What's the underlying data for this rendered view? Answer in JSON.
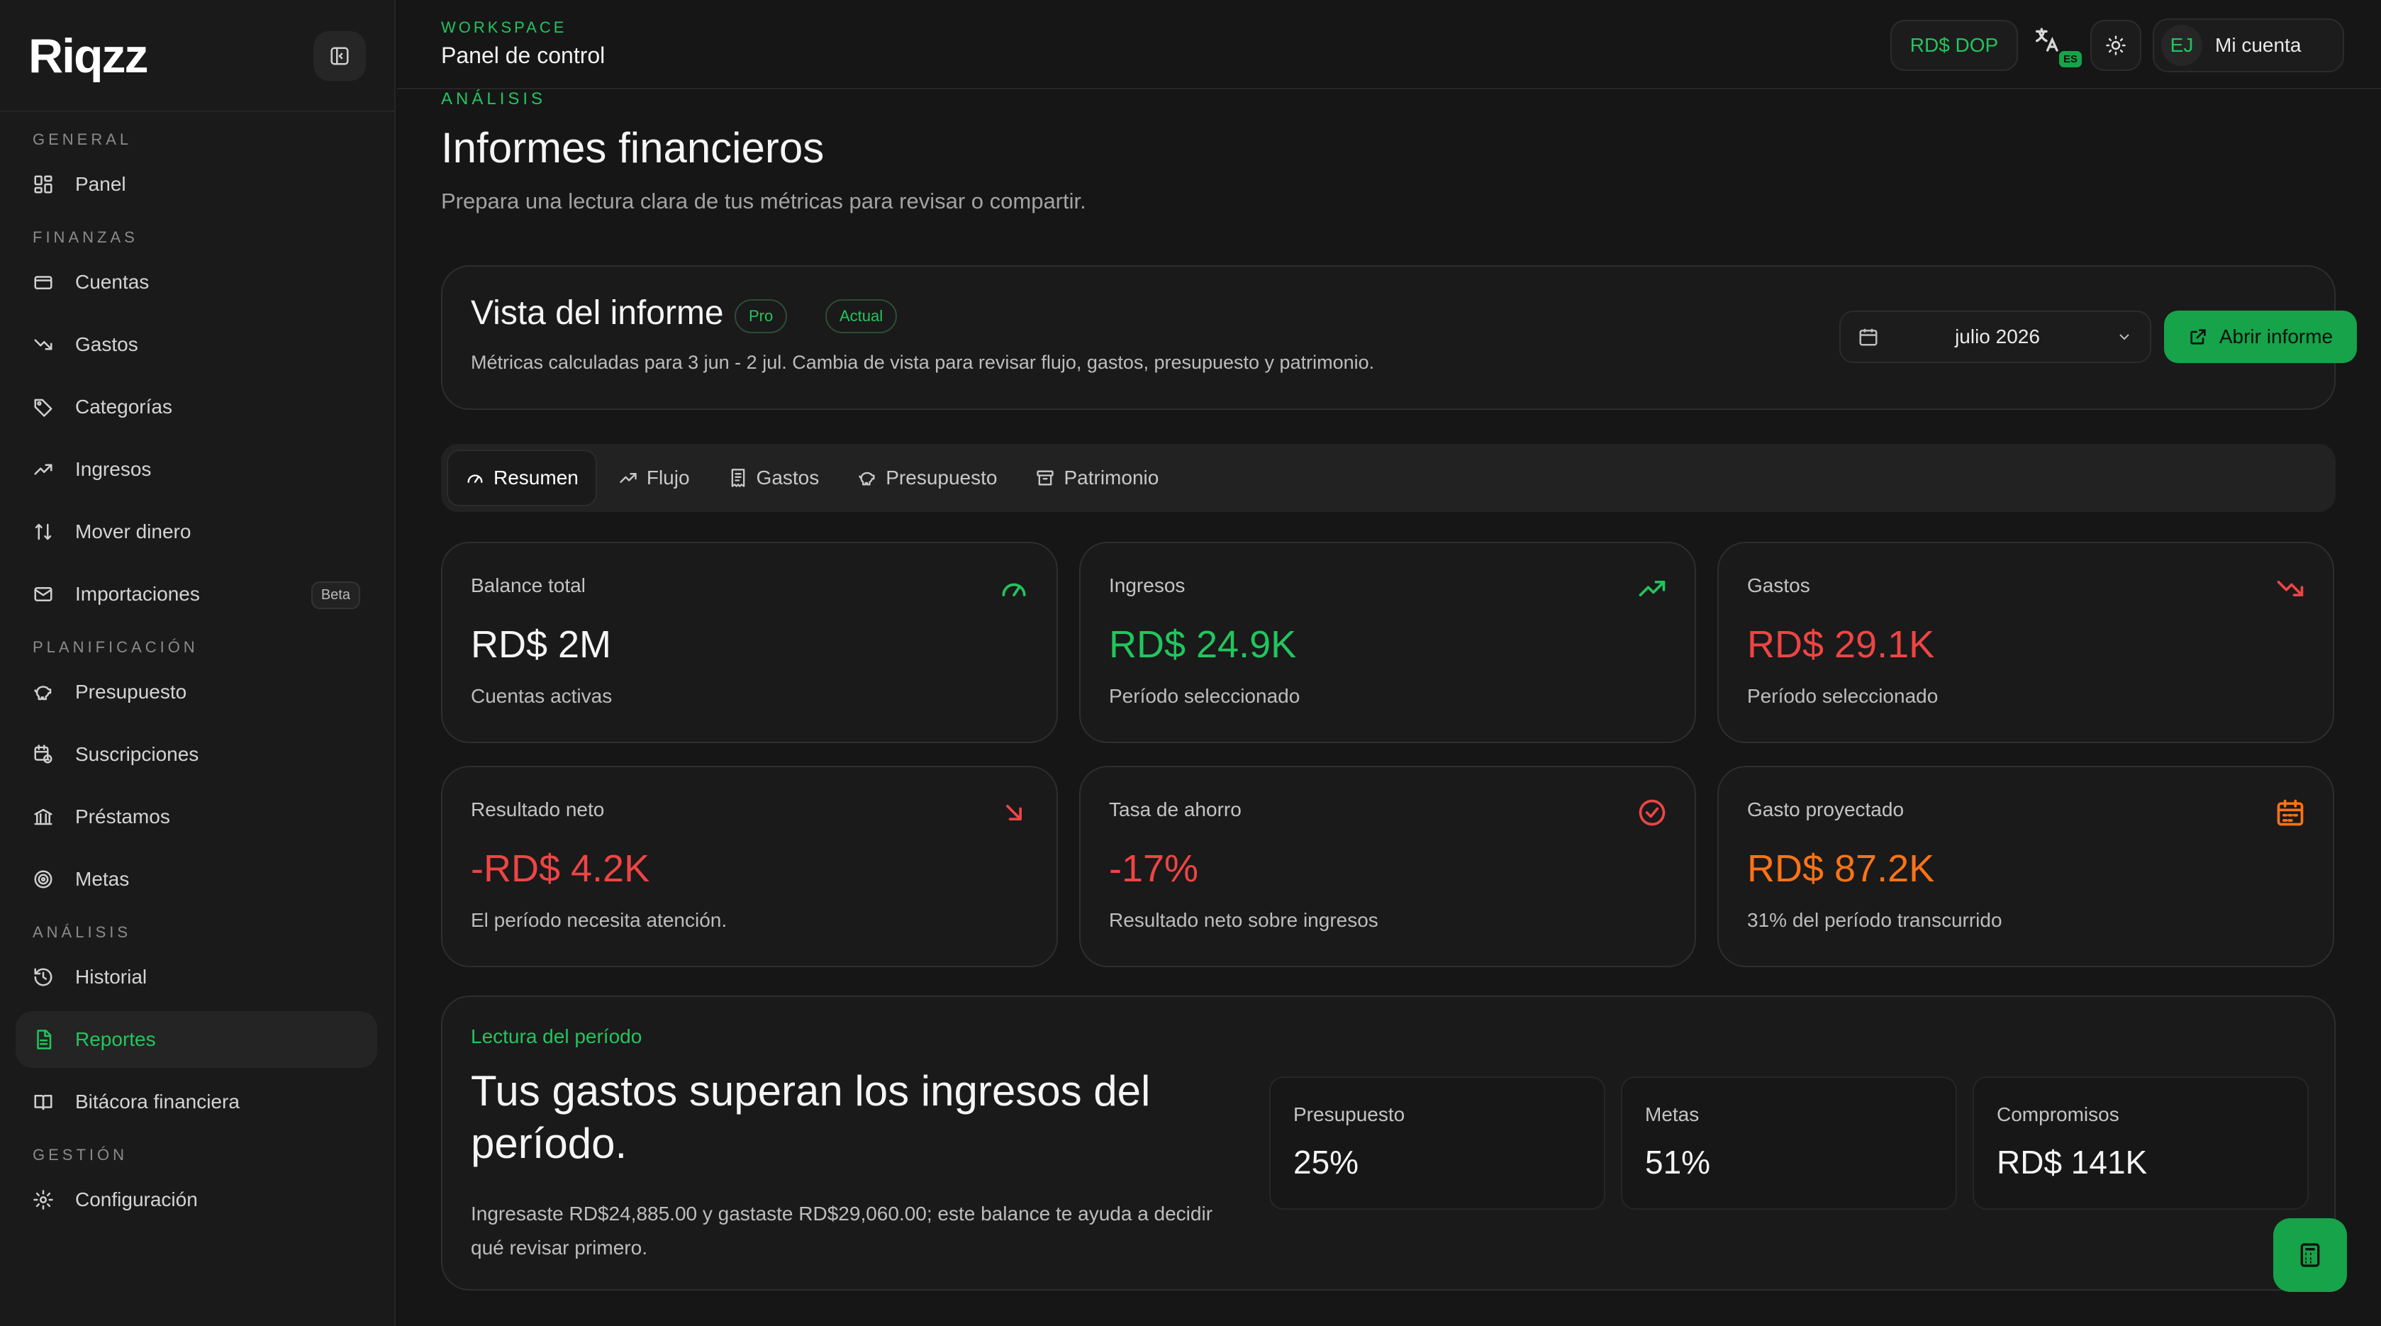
{
  "brand": {
    "name": "Riqzz"
  },
  "sidebar": {
    "groups": [
      {
        "label": "GENERAL",
        "items": [
          {
            "label": "Panel",
            "icon": "dashboard-icon"
          }
        ]
      },
      {
        "label": "FINANZAS",
        "items": [
          {
            "label": "Cuentas",
            "icon": "wallet-icon"
          },
          {
            "label": "Gastos",
            "icon": "trending-down-icon"
          },
          {
            "label": "Categorías",
            "icon": "tag-icon"
          },
          {
            "label": "Ingresos",
            "icon": "trending-up-icon"
          },
          {
            "label": "Mover dinero",
            "icon": "transfer-icon"
          },
          {
            "label": "Importaciones",
            "icon": "mail-icon",
            "badge": "Beta"
          }
        ]
      },
      {
        "label": "PLANIFICACIÓN",
        "items": [
          {
            "label": "Presupuesto",
            "icon": "piggy-bank-icon"
          },
          {
            "label": "Suscripciones",
            "icon": "calendar-clock-icon"
          },
          {
            "label": "Préstamos",
            "icon": "bank-icon"
          },
          {
            "label": "Metas",
            "icon": "target-icon"
          }
        ]
      },
      {
        "label": "ANÁLISIS",
        "items": [
          {
            "label": "Historial",
            "icon": "history-icon"
          },
          {
            "label": "Reportes",
            "icon": "report-icon",
            "active": true
          },
          {
            "label": "Bitácora financiera",
            "icon": "book-icon"
          }
        ]
      },
      {
        "label": "GESTIÓN",
        "items": [
          {
            "label": "Configuración",
            "icon": "gear-icon"
          }
        ]
      }
    ]
  },
  "header": {
    "workspace_label": "WORKSPACE",
    "workspace_title": "Panel de control",
    "currency": "RD$ DOP",
    "language_badge": "ES",
    "account_initials": "EJ",
    "account_label": "Mi cuenta"
  },
  "page": {
    "section_label": "ANÁLISIS",
    "title": "Informes financieros",
    "subtitle": "Prepara una lectura clara de tus métricas para revisar o compartir."
  },
  "report": {
    "title": "Vista del informe",
    "pills": [
      "Pro",
      "Actual"
    ],
    "description": "Métricas calculadas para 3 jun - 2 jul. Cambia de vista para revisar flujo, gastos, presupuesto y patrimonio.",
    "period": "julio 2026",
    "open_button": "Abrir informe"
  },
  "tabs": [
    {
      "label": "Resumen",
      "icon": "gauge-icon",
      "active": true
    },
    {
      "label": "Flujo",
      "icon": "trending-up-icon"
    },
    {
      "label": "Gastos",
      "icon": "receipt-icon"
    },
    {
      "label": "Presupuesto",
      "icon": "piggy-bank-icon"
    },
    {
      "label": "Patrimonio",
      "icon": "archive-icon"
    }
  ],
  "metrics": [
    {
      "label": "Balance total",
      "value": "RD$ 2M",
      "sub": "Cuentas activas",
      "icon": "gauge-icon",
      "color": "#f5f5f5",
      "icon_color": "#22c55e"
    },
    {
      "label": "Ingresos",
      "value": "RD$ 24.9K",
      "sub": "Período seleccionado",
      "icon": "trending-up-icon",
      "color": "#22c55e",
      "icon_color": "#22c55e"
    },
    {
      "label": "Gastos",
      "value": "RD$ 29.1K",
      "sub": "Período seleccionado",
      "icon": "trending-down-icon",
      "color": "#ef4444",
      "icon_color": "#ef4444"
    },
    {
      "label": "Resultado neto",
      "value": "-RD$ 4.2K",
      "sub": "El período necesita atención.",
      "icon": "arrow-down-right-icon",
      "color": "#ef4444",
      "icon_color": "#ef4444"
    },
    {
      "label": "Tasa de ahorro",
      "value": "-17%",
      "sub": "Resultado neto sobre ingresos",
      "icon": "check-circle-icon",
      "color": "#ef4444",
      "icon_color": "#ef4444"
    },
    {
      "label": "Gasto proyectado",
      "value": "RD$ 87.2K",
      "sub": "31% del período transcurrido",
      "icon": "calendar-icon",
      "color": "#f97316",
      "icon_color": "#f97316"
    }
  ],
  "insight": {
    "label": "Lectura del período",
    "title": "Tus gastos superan los ingresos del período.",
    "body": "Ingresaste RD$24,885.00 y gastaste RD$29,060.00; este balance te ayuda a decidir qué revisar primero.",
    "stats": [
      {
        "label": "Presupuesto",
        "value": "25%"
      },
      {
        "label": "Metas",
        "value": "51%"
      },
      {
        "label": "Compromisos",
        "value": "RD$ 141K"
      }
    ]
  },
  "colors": {
    "accent": "#22c55e",
    "negative": "#ef4444",
    "warning": "#f97316",
    "background": "#161616"
  },
  "fab": {
    "icon": "calculator-icon"
  }
}
